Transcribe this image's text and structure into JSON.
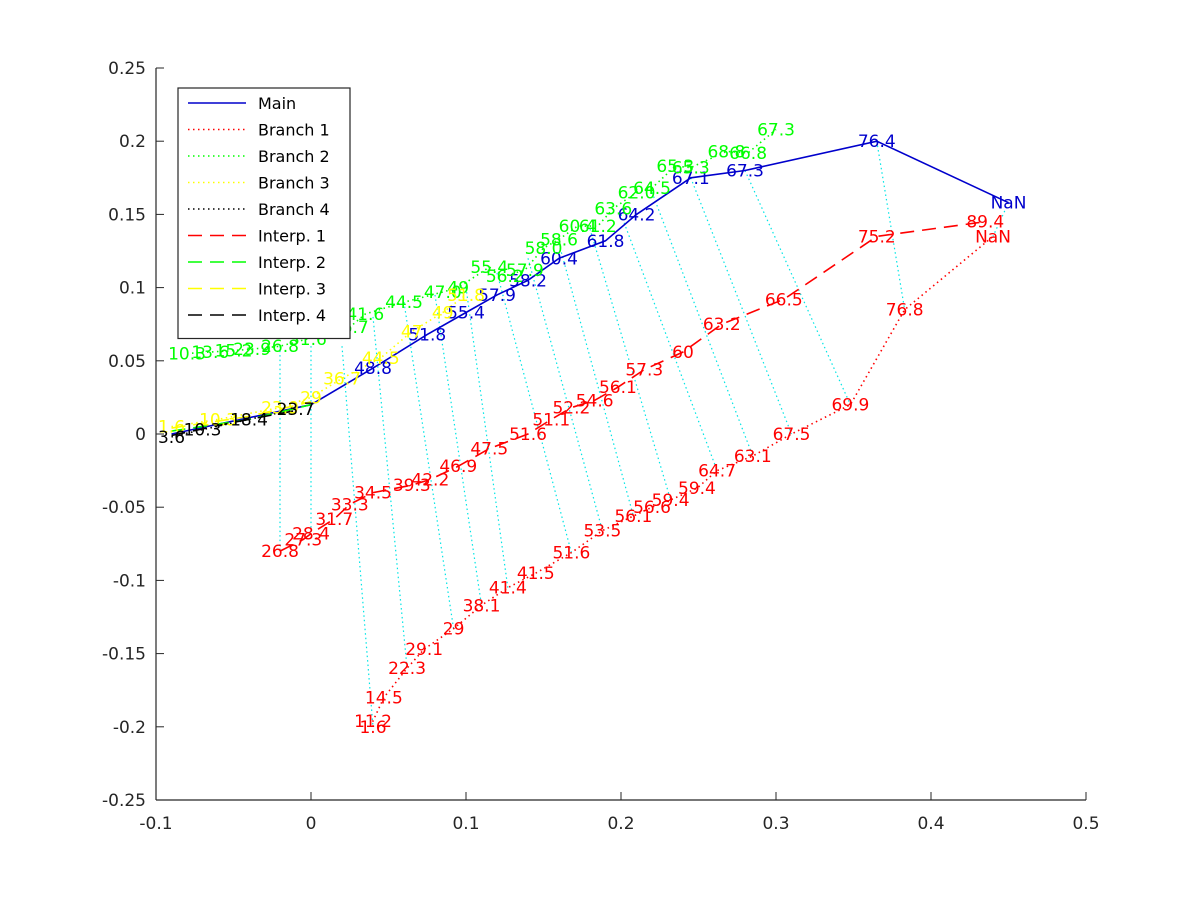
{
  "chart_data": {
    "type": "line",
    "title": "",
    "xlabel": "",
    "ylabel": "",
    "xlim": [
      -0.1,
      0.5
    ],
    "ylim": [
      -0.25,
      0.25
    ],
    "xticks": [
      -0.1,
      0,
      0.1,
      0.2,
      0.3,
      0.4,
      0.5
    ],
    "yticks": [
      -0.25,
      -0.2,
      -0.15,
      -0.1,
      -0.05,
      0,
      0.05,
      0.1,
      0.15,
      0.2,
      0.25
    ],
    "xtick_labels": [
      "-0.1",
      "0",
      "0.1",
      "0.2",
      "0.3",
      "0.4",
      "0.5"
    ],
    "ytick_labels": [
      "-0.25",
      "-0.2",
      "-0.15",
      "-0.1",
      "-0.05",
      "0",
      "0.05",
      "0.1",
      "0.15",
      "0.2",
      "0.25"
    ],
    "grid": false,
    "legend_position": "top-left",
    "series": [
      {
        "name": "Main",
        "color": "#0000cc",
        "style": "solid",
        "points": [
          {
            "x": -0.09,
            "y": 0.0,
            "label": ""
          },
          {
            "x": 0.0,
            "y": 0.02,
            "label": ""
          },
          {
            "x": 0.04,
            "y": 0.045,
            "label": "48.8"
          },
          {
            "x": 0.075,
            "y": 0.068,
            "label": "51.8"
          },
          {
            "x": 0.1,
            "y": 0.083,
            "label": "55.4"
          },
          {
            "x": 0.12,
            "y": 0.095,
            "label": "57.9"
          },
          {
            "x": 0.14,
            "y": 0.105,
            "label": "58.2"
          },
          {
            "x": 0.16,
            "y": 0.12,
            "label": "60.4"
          },
          {
            "x": 0.19,
            "y": 0.132,
            "label": "61.8"
          },
          {
            "x": 0.21,
            "y": 0.15,
            "label": "64.2"
          },
          {
            "x": 0.245,
            "y": 0.175,
            "label": "67.1"
          },
          {
            "x": 0.28,
            "y": 0.18,
            "label": "67.3"
          },
          {
            "x": 0.365,
            "y": 0.2,
            "label": "76.4"
          },
          {
            "x": 0.45,
            "y": 0.158,
            "label": "NaN"
          }
        ]
      },
      {
        "name": "Branch 1",
        "color": "#ff0000",
        "style": "dotted",
        "points": [
          {
            "x": 0.04,
            "y": -0.2,
            "label": "1.6"
          },
          {
            "x": 0.04,
            "y": -0.196,
            "label": "11.2"
          },
          {
            "x": 0.047,
            "y": -0.18,
            "label": "14.5"
          },
          {
            "x": 0.062,
            "y": -0.16,
            "label": "22.3"
          },
          {
            "x": 0.073,
            "y": -0.147,
            "label": "29.1"
          },
          {
            "x": 0.092,
            "y": -0.133,
            "label": "29"
          },
          {
            "x": 0.11,
            "y": -0.117,
            "label": "38.1"
          },
          {
            "x": 0.127,
            "y": -0.105,
            "label": "41.4"
          },
          {
            "x": 0.145,
            "y": -0.095,
            "label": "41.5"
          },
          {
            "x": 0.168,
            "y": -0.081,
            "label": "51.6"
          },
          {
            "x": 0.188,
            "y": -0.066,
            "label": "53.5"
          },
          {
            "x": 0.208,
            "y": -0.056,
            "label": "56.1"
          },
          {
            "x": 0.22,
            "y": -0.05,
            "label": "56.6"
          },
          {
            "x": 0.232,
            "y": -0.045,
            "label": "59.4"
          },
          {
            "x": 0.249,
            "y": -0.037,
            "label": "59.4"
          },
          {
            "x": 0.262,
            "y": -0.025,
            "label": "64.7"
          },
          {
            "x": 0.285,
            "y": -0.015,
            "label": "63.1"
          },
          {
            "x": 0.31,
            "y": -0.0,
            "label": "67.5"
          },
          {
            "x": 0.348,
            "y": 0.02,
            "label": "69.9"
          },
          {
            "x": 0.383,
            "y": 0.085,
            "label": "76.8"
          },
          {
            "x": 0.44,
            "y": 0.135,
            "label": "NaN"
          }
        ]
      },
      {
        "name": "Branch 2",
        "color": "#00ff00",
        "style": "dotted",
        "points": [
          {
            "x": -0.08,
            "y": 0.055,
            "label": "10.3"
          },
          {
            "x": -0.065,
            "y": 0.056,
            "label": "13.6"
          },
          {
            "x": -0.05,
            "y": 0.057,
            "label": "15.2"
          },
          {
            "x": -0.038,
            "y": 0.058,
            "label": "23.9"
          },
          {
            "x": -0.02,
            "y": 0.06,
            "label": "26.8"
          },
          {
            "x": -0.002,
            "y": 0.065,
            "label": "31.6"
          },
          {
            "x": 0.025,
            "y": 0.073,
            "label": "36.7"
          },
          {
            "x": 0.035,
            "y": 0.082,
            "label": "41.6"
          },
          {
            "x": 0.06,
            "y": 0.09,
            "label": "44.5"
          },
          {
            "x": 0.085,
            "y": 0.097,
            "label": "47.0"
          },
          {
            "x": 0.095,
            "y": 0.1,
            "label": "49"
          },
          {
            "x": 0.115,
            "y": 0.114,
            "label": "55.4"
          },
          {
            "x": 0.125,
            "y": 0.108,
            "label": "56.2"
          },
          {
            "x": 0.138,
            "y": 0.112,
            "label": "57.9"
          },
          {
            "x": 0.15,
            "y": 0.127,
            "label": "58.0"
          },
          {
            "x": 0.16,
            "y": 0.133,
            "label": "58.6"
          },
          {
            "x": 0.172,
            "y": 0.142,
            "label": "60.4"
          },
          {
            "x": 0.185,
            "y": 0.142,
            "label": "61.2"
          },
          {
            "x": 0.195,
            "y": 0.154,
            "label": "63.6"
          },
          {
            "x": 0.21,
            "y": 0.165,
            "label": "62.0"
          },
          {
            "x": 0.22,
            "y": 0.168,
            "label": "64.5"
          },
          {
            "x": 0.235,
            "y": 0.183,
            "label": "65.3"
          },
          {
            "x": 0.245,
            "y": 0.182,
            "label": "65.3"
          },
          {
            "x": 0.268,
            "y": 0.193,
            "label": "68.8"
          },
          {
            "x": 0.282,
            "y": 0.192,
            "label": "66.8"
          },
          {
            "x": 0.3,
            "y": 0.208,
            "label": "67.3"
          }
        ]
      },
      {
        "name": "Branch 3",
        "color": "#ffff00",
        "style": "dotted",
        "points": [
          {
            "x": -0.09,
            "y": 0.005,
            "label": "1.6"
          },
          {
            "x": -0.06,
            "y": 0.01,
            "label": "10.3"
          },
          {
            "x": -0.02,
            "y": 0.018,
            "label": "23.9"
          },
          {
            "x": 0.0,
            "y": 0.025,
            "label": "29"
          },
          {
            "x": 0.02,
            "y": 0.038,
            "label": "36.7"
          },
          {
            "x": 0.045,
            "y": 0.052,
            "label": "44.5"
          },
          {
            "x": 0.065,
            "y": 0.07,
            "label": "47"
          },
          {
            "x": 0.085,
            "y": 0.083,
            "label": "49"
          },
          {
            "x": 0.1,
            "y": 0.095,
            "label": "51.8"
          }
        ]
      },
      {
        "name": "Branch 4",
        "color": "#000000",
        "style": "dotted",
        "points": [
          {
            "x": -0.09,
            "y": -0.002,
            "label": "3.6"
          },
          {
            "x": -0.07,
            "y": 0.003,
            "label": "10.3"
          },
          {
            "x": -0.04,
            "y": 0.01,
            "label": "18.4"
          },
          {
            "x": -0.01,
            "y": 0.017,
            "label": "23.7"
          }
        ]
      },
      {
        "name": "Interp. 1",
        "color": "#ff0000",
        "style": "dashed",
        "points": [
          {
            "x": -0.02,
            "y": -0.08,
            "label": "26.8"
          },
          {
            "x": -0.005,
            "y": -0.072,
            "label": "27.3"
          },
          {
            "x": 0.0,
            "y": -0.068,
            "label": "28.4"
          },
          {
            "x": 0.015,
            "y": -0.058,
            "label": "31.7"
          },
          {
            "x": 0.025,
            "y": -0.048,
            "label": "33.3"
          },
          {
            "x": 0.04,
            "y": -0.04,
            "label": "34.5"
          },
          {
            "x": 0.065,
            "y": -0.035,
            "label": "39.3"
          },
          {
            "x": 0.077,
            "y": -0.031,
            "label": "42.2"
          },
          {
            "x": 0.095,
            "y": -0.022,
            "label": "46.9"
          },
          {
            "x": 0.115,
            "y": -0.01,
            "label": "47.5"
          },
          {
            "x": 0.14,
            "y": 0.0,
            "label": "51.6"
          },
          {
            "x": 0.155,
            "y": 0.01,
            "label": "51.1"
          },
          {
            "x": 0.168,
            "y": 0.018,
            "label": "52.2"
          },
          {
            "x": 0.183,
            "y": 0.023,
            "label": "54.6"
          },
          {
            "x": 0.198,
            "y": 0.032,
            "label": "56.1"
          },
          {
            "x": 0.215,
            "y": 0.044,
            "label": "57.3"
          },
          {
            "x": 0.24,
            "y": 0.056,
            "label": "60"
          },
          {
            "x": 0.265,
            "y": 0.075,
            "label": "63.2"
          },
          {
            "x": 0.305,
            "y": 0.092,
            "label": "66.5"
          },
          {
            "x": 0.365,
            "y": 0.135,
            "label": "75.2"
          },
          {
            "x": 0.435,
            "y": 0.145,
            "label": "89.4"
          }
        ]
      },
      {
        "name": "Interp. 2",
        "color": "#00ff00",
        "style": "dashed",
        "points": [
          {
            "x": -0.09,
            "y": 0.002,
            "label": ""
          },
          {
            "x": -0.04,
            "y": 0.01,
            "label": ""
          },
          {
            "x": 0.0,
            "y": 0.02,
            "label": ""
          }
        ]
      },
      {
        "name": "Interp. 3",
        "color": "#ffff00",
        "style": "dashed",
        "points": [
          {
            "x": -0.09,
            "y": 0.004,
            "label": ""
          },
          {
            "x": -0.04,
            "y": 0.012,
            "label": ""
          },
          {
            "x": 0.0,
            "y": 0.022,
            "label": ""
          }
        ]
      },
      {
        "name": "Interp. 4",
        "color": "#000000",
        "style": "dashed",
        "points": [
          {
            "x": -0.09,
            "y": -0.001,
            "label": ""
          },
          {
            "x": -0.05,
            "y": 0.008,
            "label": ""
          },
          {
            "x": -0.01,
            "y": 0.016,
            "label": ""
          }
        ]
      }
    ],
    "connectors": {
      "color": "#00e5e5",
      "style": "dotted",
      "segments": [
        [
          [
            -0.02,
            0.06
          ],
          [
            -0.02,
            -0.08
          ]
        ],
        [
          [
            0.0,
            0.06
          ],
          [
            0.0,
            -0.068
          ]
        ],
        [
          [
            0.02,
            0.06
          ],
          [
            0.04,
            -0.2
          ]
        ],
        [
          [
            0.04,
            0.08
          ],
          [
            0.062,
            -0.16
          ]
        ],
        [
          [
            0.06,
            0.09
          ],
          [
            0.092,
            -0.133
          ]
        ],
        [
          [
            0.08,
            0.095
          ],
          [
            0.11,
            -0.117
          ]
        ],
        [
          [
            0.1,
            0.1
          ],
          [
            0.127,
            -0.105
          ]
        ],
        [
          [
            0.12,
            0.11
          ],
          [
            0.168,
            -0.081
          ]
        ],
        [
          [
            0.14,
            0.12
          ],
          [
            0.188,
            -0.066
          ]
        ],
        [
          [
            0.16,
            0.13
          ],
          [
            0.208,
            -0.056
          ]
        ],
        [
          [
            0.18,
            0.14
          ],
          [
            0.232,
            -0.045
          ]
        ],
        [
          [
            0.2,
            0.15
          ],
          [
            0.262,
            -0.025
          ]
        ],
        [
          [
            0.22,
            0.165
          ],
          [
            0.285,
            -0.015
          ]
        ],
        [
          [
            0.245,
            0.175
          ],
          [
            0.31,
            0.0
          ]
        ],
        [
          [
            0.28,
            0.18
          ],
          [
            0.348,
            0.02
          ]
        ],
        [
          [
            0.365,
            0.2
          ],
          [
            0.383,
            0.085
          ]
        ],
        [
          [
            0.45,
            0.158
          ],
          [
            0.44,
            0.135
          ]
        ]
      ]
    }
  }
}
